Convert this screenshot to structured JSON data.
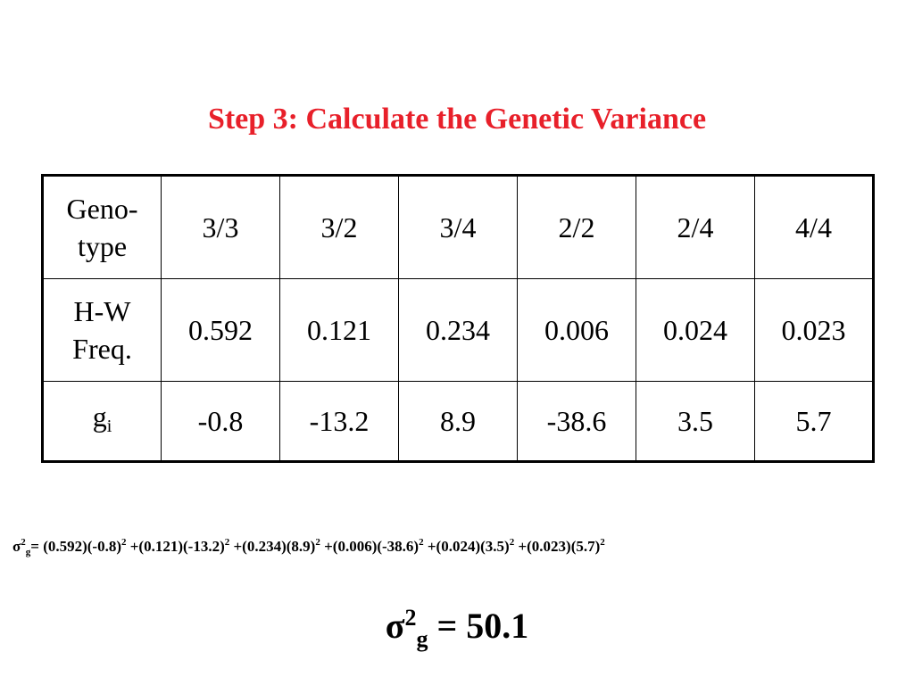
{
  "title": "Step 3:  Calculate the Genetic Variance",
  "colors": {
    "title": "#e8202a",
    "text": "#000000",
    "background": "#ffffff"
  },
  "table": {
    "genotype_header": [
      "Geno-",
      "type"
    ],
    "hw_header": [
      "H-W",
      "Freq."
    ],
    "gi_header": {
      "base": "g",
      "sub": "i"
    },
    "genotypes": [
      "3/3",
      "3/2",
      "3/4",
      "2/2",
      "2/4",
      "4/4"
    ],
    "hw_freq": [
      "0.592",
      "0.121",
      "0.234",
      "0.006",
      "0.024",
      "0.023"
    ],
    "gi": [
      "-0.8",
      "-13.2",
      "8.9",
      "-38.6",
      "3.5",
      "5.7"
    ]
  },
  "formula": {
    "symbol": "σ",
    "sup": "2",
    "sub": "g",
    "lhs_suffix": "= ",
    "terms": [
      {
        "text": "(0.592)(-0.8)",
        "exp": "2"
      },
      {
        "text": " +(0.121)(-13.2)",
        "exp": "2"
      },
      {
        "text": " +(0.234)(8.9)",
        "exp": "2"
      },
      {
        "text": " +(0.006)(-38.6)",
        "exp": "2"
      },
      {
        "text": " +(0.024)(3.5)",
        "exp": "2"
      },
      {
        "text": " +(0.023)(5.7)",
        "exp": "2"
      }
    ]
  },
  "result": {
    "symbol": "σ",
    "sup": "2",
    "sub": "g",
    "value": " = 50.1"
  }
}
